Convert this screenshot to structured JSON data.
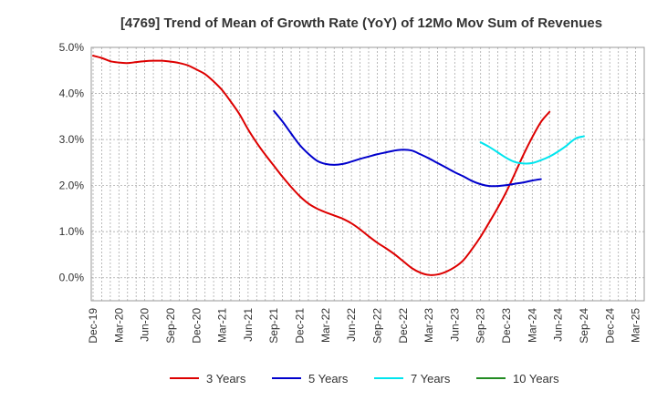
{
  "chart_data": {
    "type": "line",
    "title": "[4769]  Trend of Mean of Growth Rate (YoY) of 12Mo Mov Sum of Revenues",
    "xlabel": "",
    "ylabel": "",
    "ylim": [
      -0.5,
      5.0
    ],
    "yticks": [
      0.0,
      1.0,
      2.0,
      3.0,
      4.0,
      5.0
    ],
    "ytick_labels": [
      "0.0%",
      "1.0%",
      "2.0%",
      "3.0%",
      "4.0%",
      "5.0%"
    ],
    "x_start": "Dec-19",
    "x_count": 64,
    "xtick_labels": [
      "Dec-19",
      "Mar-20",
      "Jun-20",
      "Sep-20",
      "Dec-20",
      "Mar-21",
      "Jun-21",
      "Sep-21",
      "Dec-21",
      "Mar-22",
      "Jun-22",
      "Sep-22",
      "Dec-22",
      "Mar-23",
      "Jun-23",
      "Sep-23",
      "Dec-23",
      "Mar-24",
      "Jun-24",
      "Sep-24",
      "Dec-24",
      "Mar-25"
    ],
    "grid": true,
    "legend_position": "bottom",
    "series": [
      {
        "name": "3 Years",
        "color": "#dd0000",
        "start_index": 0,
        "values": [
          4.82,
          4.77,
          4.7,
          4.67,
          4.66,
          4.68,
          4.7,
          4.71,
          4.71,
          4.69,
          4.66,
          4.61,
          4.52,
          4.42,
          4.26,
          4.07,
          3.82,
          3.55,
          3.22,
          2.93,
          2.67,
          2.43,
          2.19,
          1.97,
          1.77,
          1.61,
          1.5,
          1.42,
          1.35,
          1.28,
          1.18,
          1.05,
          0.9,
          0.76,
          0.64,
          0.51,
          0.36,
          0.21,
          0.11,
          0.06,
          0.07,
          0.13,
          0.23,
          0.38,
          0.62,
          0.89,
          1.2,
          1.52,
          1.87,
          2.27,
          2.68,
          3.05,
          3.38,
          3.6
        ]
      },
      {
        "name": "5 Years",
        "color": "#0000cc",
        "start_index": 21,
        "values": [
          3.62,
          3.39,
          3.13,
          2.88,
          2.69,
          2.54,
          2.47,
          2.45,
          2.47,
          2.52,
          2.58,
          2.63,
          2.68,
          2.72,
          2.76,
          2.78,
          2.76,
          2.68,
          2.59,
          2.49,
          2.39,
          2.29,
          2.2,
          2.1,
          2.03,
          1.99,
          1.99,
          2.01,
          2.04,
          2.07,
          2.11,
          2.14
        ]
      },
      {
        "name": "7 Years",
        "color": "#00e5ee",
        "start_index": 45,
        "values": [
          2.94,
          2.84,
          2.72,
          2.6,
          2.51,
          2.48,
          2.49,
          2.55,
          2.63,
          2.74,
          2.87,
          3.02,
          3.07
        ]
      },
      {
        "name": "10 Years",
        "color": "#228b22",
        "start_index": 0,
        "values": []
      }
    ]
  }
}
